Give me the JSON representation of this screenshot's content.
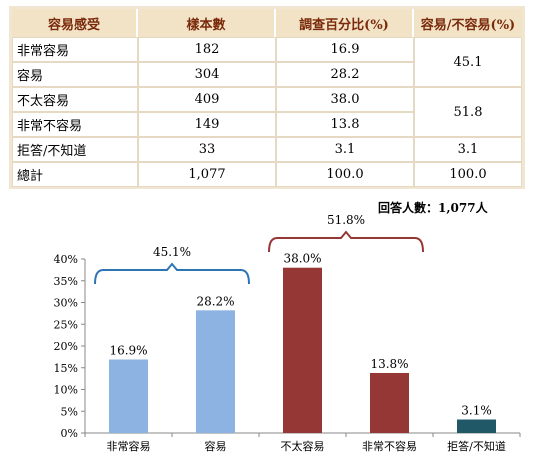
{
  "table": {
    "headers": [
      "容易感受",
      "樣本數",
      "調查百分比(%)",
      "容易/不容易(%)"
    ],
    "rows": [
      {
        "label": "非常容易",
        "n": "182",
        "pct": "16.9"
      },
      {
        "label": "容易",
        "n": "304",
        "pct": "28.2"
      },
      {
        "label": "不太容易",
        "n": "409",
        "pct": "38.0"
      },
      {
        "label": "非常不容易",
        "n": "149",
        "pct": "13.8"
      },
      {
        "label": "拒答/不知道",
        "n": "33",
        "pct": "3.1",
        "group": "3.1"
      },
      {
        "label": "總計",
        "n": "1,077",
        "pct": "100.0",
        "group": "100.0"
      }
    ],
    "groups": [
      {
        "value": "45.1",
        "rowspan": 2
      },
      {
        "value": "51.8",
        "rowspan": 2
      }
    ]
  },
  "respondents": "回答人數：1,077人",
  "chart_data": {
    "type": "bar",
    "categories": [
      "非常容易",
      "容易",
      "不太容易",
      "非常不容易",
      "拒答/不知道"
    ],
    "values": [
      16.9,
      28.2,
      38.0,
      13.8,
      3.1
    ],
    "data_labels": [
      "16.9%",
      "28.2%",
      "38.0%",
      "13.8%",
      "3.1%"
    ],
    "colors": [
      "#8db3e2",
      "#8db3e2",
      "#953735",
      "#953735",
      "#215868"
    ],
    "ylim": [
      0,
      40
    ],
    "yticks": [
      "0%",
      "5%",
      "10%",
      "15%",
      "20%",
      "25%",
      "30%",
      "35%",
      "40%"
    ],
    "brackets": [
      {
        "label": "45.1%",
        "from": 0,
        "to": 1,
        "color": "#2e75b6"
      },
      {
        "label": "51.8%",
        "from": 2,
        "to": 3,
        "color": "#953735"
      }
    ],
    "xlabel": "",
    "ylabel": ""
  }
}
